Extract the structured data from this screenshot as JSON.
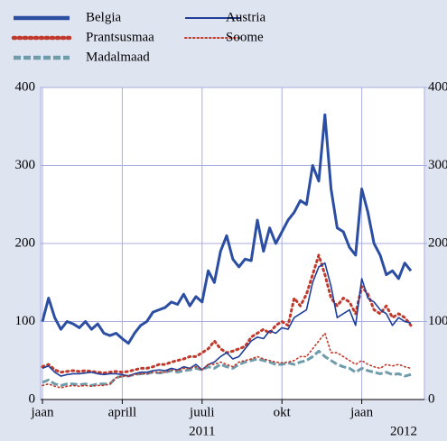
{
  "chart_data": {
    "type": "line",
    "categories": [
      "jaan",
      null,
      null,
      null,
      null,
      null,
      null,
      null,
      null,
      null,
      null,
      null,
      null,
      "aprill",
      null,
      null,
      null,
      null,
      null,
      null,
      null,
      null,
      null,
      null,
      null,
      null,
      "juuli",
      null,
      null,
      null,
      null,
      null,
      null,
      null,
      null,
      null,
      null,
      null,
      null,
      "okt",
      null,
      null,
      null,
      null,
      null,
      null,
      null,
      null,
      null,
      null,
      null,
      null,
      "jaan",
      null,
      null,
      null,
      null,
      null,
      null,
      null,
      null
    ],
    "x_year_labels": [
      "2011",
      "2012"
    ],
    "ylim": [
      0,
      400
    ],
    "yticks": [
      0,
      100,
      200,
      300,
      400
    ],
    "y2lim": [
      0,
      400
    ],
    "y2ticks": [
      0,
      100,
      200,
      300,
      400
    ],
    "grid": true,
    "series": [
      {
        "name": "Belgia",
        "color": "#2b4ea3",
        "style": "solid",
        "weight": "thick",
        "values": [
          100,
          130,
          105,
          90,
          100,
          97,
          92,
          100,
          90,
          97,
          85,
          82,
          85,
          78,
          72,
          85,
          95,
          100,
          112,
          115,
          118,
          125,
          122,
          135,
          120,
          132,
          125,
          165,
          150,
          190,
          210,
          180,
          170,
          180,
          178,
          230,
          190,
          220,
          200,
          215,
          230,
          240,
          255,
          250,
          300,
          280,
          365,
          270,
          220,
          215,
          195,
          185,
          270,
          240,
          200,
          185,
          160,
          165,
          155,
          175,
          165
        ]
      },
      {
        "name": "Prantsusmaa",
        "color": "#c0392b",
        "style": "dotted",
        "weight": "thick",
        "values": [
          42,
          45,
          38,
          35,
          36,
          37,
          36,
          37,
          36,
          35,
          34,
          35,
          36,
          35,
          36,
          38,
          40,
          40,
          42,
          45,
          45,
          48,
          50,
          52,
          55,
          55,
          60,
          65,
          75,
          65,
          60,
          62,
          65,
          68,
          80,
          85,
          90,
          85,
          95,
          100,
          95,
          130,
          120,
          135,
          160,
          185,
          160,
          130,
          120,
          130,
          125,
          110,
          145,
          135,
          115,
          110,
          120,
          105,
          110,
          105,
          95
        ]
      },
      {
        "name": "Madalmaad",
        "color": "#6e9cab",
        "style": "dashed",
        "weight": "thick",
        "values": [
          22,
          25,
          20,
          18,
          20,
          20,
          19,
          20,
          18,
          20,
          20,
          20,
          28,
          30,
          30,
          32,
          33,
          33,
          35,
          34,
          35,
          37,
          35,
          37,
          38,
          40,
          38,
          42,
          40,
          45,
          42,
          40,
          45,
          48,
          50,
          52,
          50,
          48,
          45,
          45,
          47,
          45,
          48,
          50,
          55,
          62,
          55,
          50,
          45,
          42,
          40,
          35,
          40,
          37,
          35,
          33,
          35,
          32,
          33,
          30,
          32
        ]
      },
      {
        "name": "Austria",
        "color": "#1f3f9a",
        "style": "solid",
        "weight": "thin",
        "values": [
          40,
          43,
          35,
          30,
          32,
          33,
          33,
          34,
          35,
          33,
          32,
          33,
          33,
          32,
          30,
          33,
          35,
          35,
          37,
          38,
          37,
          40,
          38,
          42,
          40,
          45,
          38,
          45,
          48,
          55,
          60,
          52,
          55,
          65,
          75,
          80,
          78,
          88,
          85,
          92,
          90,
          105,
          110,
          115,
          150,
          170,
          175,
          145,
          105,
          110,
          115,
          95,
          155,
          130,
          125,
          115,
          110,
          95,
          105,
          100,
          98
        ]
      },
      {
        "name": "Soome",
        "color": "#c0392b",
        "style": "dotted",
        "weight": "thin",
        "values": [
          18,
          20,
          17,
          15,
          17,
          18,
          17,
          18,
          17,
          18,
          18,
          20,
          28,
          30,
          30,
          32,
          33,
          33,
          35,
          35,
          35,
          38,
          37,
          40,
          40,
          42,
          38,
          45,
          45,
          48,
          45,
          42,
          48,
          50,
          52,
          55,
          52,
          50,
          48,
          47,
          48,
          50,
          55,
          55,
          65,
          75,
          85,
          60,
          60,
          55,
          50,
          45,
          50,
          45,
          42,
          40,
          45,
          43,
          45,
          42,
          40
        ]
      }
    ]
  }
}
